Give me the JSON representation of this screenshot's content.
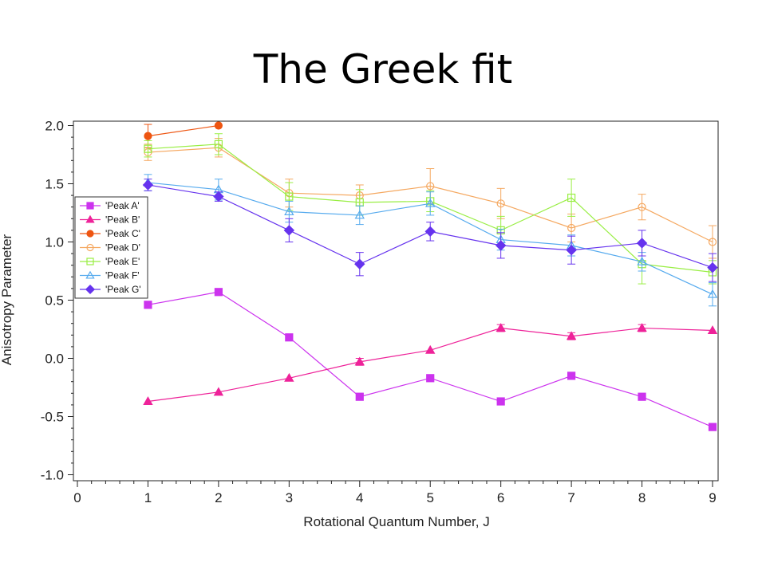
{
  "slide": {
    "title": "The Greek fit"
  },
  "chart_data": {
    "type": "line",
    "title": "",
    "xlabel": "Rotational Quantum Number, J",
    "ylabel": "Anisotropy Parameter",
    "xlim": [
      -0.1,
      9.05
    ],
    "ylim": [
      -1.05,
      2.05
    ],
    "xticks": [
      0,
      1,
      2,
      3,
      4,
      5,
      6,
      7,
      8,
      9
    ],
    "yticks": [
      2.0,
      1.5,
      1.0,
      0.5,
      0.0,
      -0.5,
      -1.0
    ],
    "ytick_labels": [
      "2.0",
      "1.5",
      "1.0",
      "0.5",
      "0.0",
      "-0.5",
      "-1.0"
    ],
    "xtick_labels": [
      "0",
      "1",
      "2",
      "3",
      "4",
      "5",
      "6",
      "7",
      "8",
      "9"
    ],
    "legend_position": "left",
    "grid": false,
    "series": [
      {
        "name": "'Peak A'",
        "color": "#cc33ee",
        "marker": "square",
        "filled": true,
        "x": [
          1,
          2,
          3,
          4,
          5,
          6,
          7,
          8,
          9
        ],
        "y": [
          0.46,
          0.57,
          0.18,
          -0.33,
          -0.17,
          -0.37,
          -0.15,
          -0.33,
          -0.59
        ],
        "err": [
          0,
          0,
          0,
          0,
          0,
          0,
          0,
          0,
          0
        ]
      },
      {
        "name": "'Peak B'",
        "color": "#ee2299",
        "marker": "triangle",
        "filled": true,
        "x": [
          1,
          2,
          3,
          4,
          5,
          6,
          7,
          8,
          9
        ],
        "y": [
          -0.37,
          -0.29,
          -0.17,
          -0.03,
          0.07,
          0.26,
          0.19,
          0.26,
          0.24
        ],
        "err": [
          0,
          0,
          0,
          0.03,
          0,
          0.03,
          0.03,
          0.03,
          0
        ]
      },
      {
        "name": "'Peak C'",
        "color": "#ee5511",
        "marker": "circle",
        "filled": true,
        "x": [
          1,
          2
        ],
        "y": [
          1.91,
          2.0
        ],
        "err": [
          0.1,
          0
        ]
      },
      {
        "name": "'Peak D'",
        "color": "#f5a860",
        "marker": "circle",
        "filled": false,
        "x": [
          1,
          2,
          3,
          4,
          5,
          6,
          7,
          8,
          9
        ],
        "y": [
          1.77,
          1.81,
          1.42,
          1.4,
          1.48,
          1.33,
          1.12,
          1.3,
          1.0
        ],
        "err": [
          0.07,
          0.08,
          0.12,
          0.09,
          0.15,
          0.13,
          0.12,
          0.11,
          0.14
        ]
      },
      {
        "name": "'Peak E'",
        "color": "#99ee44",
        "marker": "square",
        "filled": false,
        "x": [
          1,
          2,
          3,
          4,
          5,
          6,
          7,
          8,
          9
        ],
        "y": [
          1.8,
          1.84,
          1.39,
          1.34,
          1.35,
          1.1,
          1.38,
          0.81,
          0.74
        ],
        "err": [
          0.07,
          0.09,
          0.12,
          0.11,
          0.09,
          0.12,
          0.16,
          0.17,
          0.1
        ]
      },
      {
        "name": "'Peak F'",
        "color": "#55aaee",
        "marker": "triangle",
        "filled": false,
        "x": [
          1,
          2,
          3,
          4,
          5,
          6,
          7,
          8,
          9
        ],
        "y": [
          1.51,
          1.45,
          1.26,
          1.23,
          1.33,
          1.02,
          0.97,
          0.83,
          0.55
        ],
        "err": [
          0.07,
          0.09,
          0.09,
          0.08,
          0.1,
          0.09,
          0.09,
          0.08,
          0.1
        ]
      },
      {
        "name": "'Peak G'",
        "color": "#6633ee",
        "marker": "diamond",
        "filled": true,
        "x": [
          1,
          2,
          3,
          4,
          5,
          6,
          7,
          8,
          9
        ],
        "y": [
          1.49,
          1.39,
          1.1,
          0.81,
          1.09,
          0.97,
          0.93,
          0.99,
          0.78
        ],
        "err": [
          0.05,
          0.04,
          0.1,
          0.1,
          0.08,
          0.11,
          0.12,
          0.11,
          0.12
        ]
      }
    ]
  }
}
